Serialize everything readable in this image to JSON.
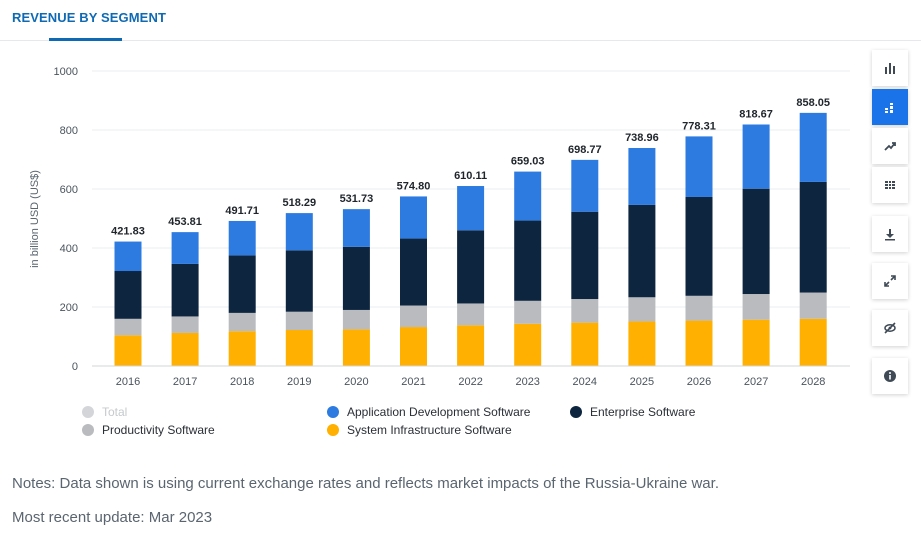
{
  "header": {
    "title": "REVENUE BY SEGMENT"
  },
  "chart_data": {
    "type": "bar",
    "stacked": true,
    "categories": [
      "2016",
      "2017",
      "2018",
      "2019",
      "2020",
      "2021",
      "2022",
      "2023",
      "2024",
      "2025",
      "2026",
      "2027",
      "2028"
    ],
    "totals": [
      421.83,
      453.81,
      491.71,
      518.29,
      531.73,
      574.8,
      610.11,
      659.03,
      698.77,
      738.96,
      778.31,
      818.67,
      858.05
    ],
    "total_labels": [
      "421.83",
      "453.81",
      "491.71",
      "518.29",
      "531.73",
      "574.80",
      "610.11",
      "659.03",
      "698.77",
      "738.96",
      "778.31",
      "818.67",
      "858.05"
    ],
    "series": [
      {
        "name": "System Infrastructure Software",
        "color": "#ffb000",
        "values": [
          104,
          112,
          118,
          122,
          124,
          132,
          138,
          143,
          147,
          151,
          154,
          157,
          160
        ]
      },
      {
        "name": "Productivity Software",
        "color": "#b9bbbe",
        "values": [
          56,
          56,
          62,
          62,
          66,
          73,
          74,
          78,
          80,
          82,
          84,
          87,
          89
        ]
      },
      {
        "name": "Enterprise Software",
        "color": "#0e2540",
        "values": [
          162,
          178,
          195,
          208,
          214,
          227,
          248,
          272,
          296,
          313,
          335,
          357,
          375
        ]
      },
      {
        "name": "Application Development Software",
        "color": "#2d7be0",
        "values": [
          99.83,
          107.81,
          116.71,
          126.29,
          127.73,
          142.8,
          150.11,
          166.03,
          175.77,
          192.96,
          205.31,
          217.67,
          234.05
        ]
      }
    ],
    "ylabel": "in billion USD (US$)",
    "ylim": [
      0,
      1000
    ],
    "yticks": [
      "1000",
      "800",
      "600",
      "400",
      "200",
      "0"
    ],
    "grid": true
  },
  "legend": {
    "total": {
      "label": "Total",
      "color": "#d3d5d8"
    },
    "app_dev": {
      "label": "Application Development Software",
      "color": "#2d7be0"
    },
    "enterprise": {
      "label": "Enterprise Software",
      "color": "#0e2540"
    },
    "productivity": {
      "label": "Productivity Software",
      "color": "#b9bbbe"
    },
    "system_infra": {
      "label": "System Infrastructure Software",
      "color": "#ffb000"
    }
  },
  "toolbar": {
    "icons": [
      "bar-chart-icon",
      "stacked-chart-icon",
      "trend-icon",
      "table-icon",
      "download-icon",
      "fullscreen-icon",
      "hide-icon",
      "info-icon"
    ]
  },
  "notes": {
    "text": "Notes: Data shown is using current exchange rates and reflects market impacts of the Russia-Ukraine war.",
    "update": "Most recent update: Mar 2023"
  }
}
